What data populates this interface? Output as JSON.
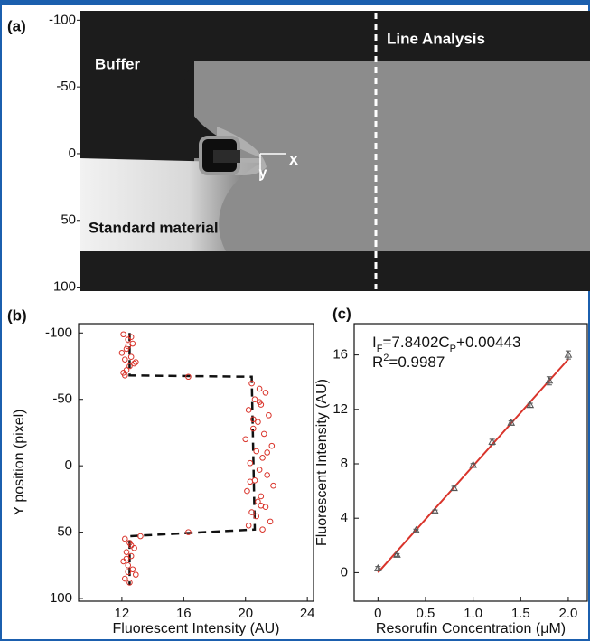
{
  "chart_data": [
    {
      "type": "image",
      "panel_label": "(a)",
      "annotations": [
        "Buffer",
        "Standard material",
        "Line Analysis",
        "x",
        "y"
      ],
      "ylim": [
        -107,
        103
      ],
      "yticks": [
        -100,
        -50,
        0,
        50,
        100
      ]
    },
    {
      "type": "scatter",
      "panel_label": "(b)",
      "x_label": "Fluorescent Intensity (AU)",
      "y_label": "Y position (pixel)",
      "xlim": [
        9.2,
        24.4
      ],
      "xticks": [
        12,
        16,
        20,
        24
      ],
      "ylim": [
        -107,
        102
      ],
      "yticks": [
        -100,
        -50,
        0,
        50,
        100
      ],
      "y_inverted": true,
      "points": {
        "color": "#d9342b",
        "x": [
          12.1,
          12.4,
          12.7,
          12.3,
          12.0,
          12.6,
          12.2,
          12.8,
          12.5,
          12.3,
          12.1,
          12.6,
          12.4,
          12.9,
          12.2,
          16.3,
          20.4,
          20.9,
          21.3,
          20.6,
          21.0,
          20.2,
          21.5,
          20.8,
          20.5,
          21.2,
          20.0,
          21.7,
          20.7,
          21.1,
          20.3,
          20.9,
          21.4,
          20.6,
          21.8,
          20.1,
          21.0,
          20.8,
          21.3,
          20.4,
          20.7,
          21.6,
          20.2,
          21.1,
          20.9,
          20.5,
          21.4,
          20.3,
          21.0,
          16.3,
          13.2,
          12.2,
          12.5,
          12.8,
          12.3,
          12.6,
          12.1,
          12.4,
          12.7,
          12.9,
          12.2,
          12.5,
          12.3,
          12.6,
          12.4
        ],
        "values": [
          -99,
          -95,
          -92,
          -88,
          -85,
          -82,
          -80,
          -77,
          -75,
          -72,
          -70,
          -97,
          -90,
          -78,
          -68,
          -67,
          -62,
          -58,
          -55,
          -50,
          -46,
          -42,
          -38,
          -33,
          -28,
          -24,
          -20,
          -15,
          -11,
          -6,
          -2,
          3,
          7,
          11,
          15,
          19,
          23,
          27,
          31,
          35,
          38,
          42,
          45,
          48,
          -48,
          -35,
          -10,
          12,
          30,
          50,
          53,
          55,
          58,
          62,
          65,
          68,
          72,
          75,
          78,
          82,
          85,
          88,
          70,
          60,
          80
        ]
      },
      "boundary": {
        "color": "#111111",
        "x": [
          12.5,
          12.5,
          20.4,
          20.6,
          12.5,
          12.5
        ],
        "values": [
          -100,
          -68,
          -67,
          48,
          53,
          90
        ]
      }
    },
    {
      "type": "scatter",
      "panel_label": "(c)",
      "x_label": "Resorufin Concentration (μM)",
      "y_label": "Fluorescent Intensity (AU)",
      "xlim": [
        -0.25,
        2.2
      ],
      "xticks": [
        0,
        0.5,
        {
          "value": 1,
          "label": "1.0"
        },
        1.5,
        {
          "value": 2,
          "label": "2.0"
        }
      ],
      "ylim": [
        -2.1,
        18.3
      ],
      "yticks": [
        0,
        4,
        8,
        12,
        16
      ],
      "equation": [
        "I",
        "F",
        "=7.8402C",
        "P",
        "+0.00443"
      ],
      "r_squared": [
        "R",
        "2",
        "=0.9987"
      ],
      "points": {
        "color": "#555555",
        "x": [
          0,
          0.2,
          0.4,
          0.6,
          0.8,
          1.0,
          1.2,
          1.4,
          1.6,
          1.8,
          2.0
        ],
        "values": [
          0.3,
          1.3,
          3.1,
          4.5,
          6.2,
          7.9,
          9.6,
          11.0,
          12.3,
          14.1,
          16.0
        ],
        "errors": [
          0.15,
          0.1,
          0.1,
          0.1,
          0.15,
          0.12,
          0.2,
          0.15,
          0.15,
          0.3,
          0.3
        ]
      },
      "fit": {
        "color": "#d9342b",
        "x": [
          0,
          2
        ],
        "values": [
          0.00443,
          15.68483
        ]
      }
    }
  ]
}
